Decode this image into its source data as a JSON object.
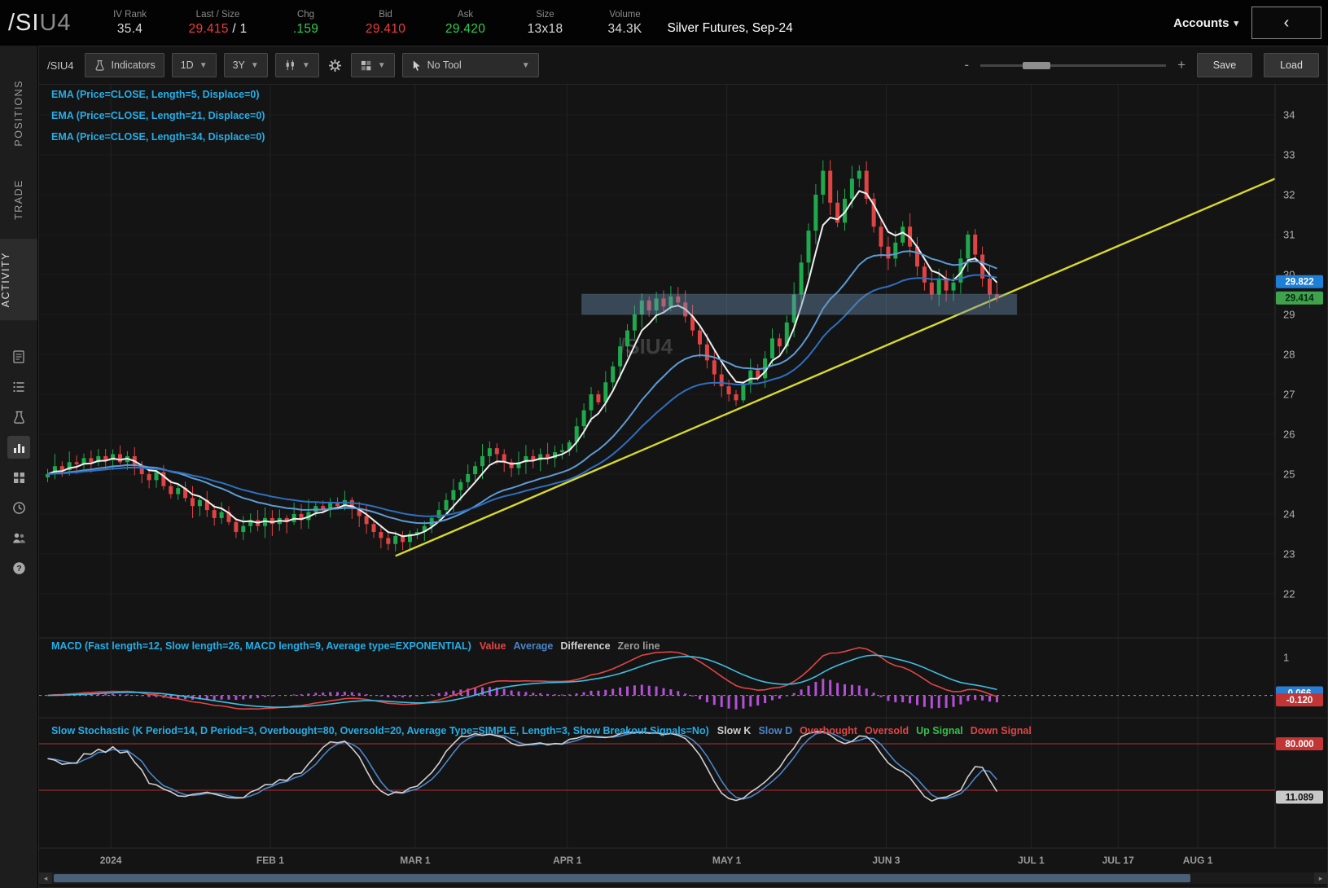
{
  "header": {
    "symbol_root": "/SI",
    "symbol_suffix": "U4",
    "fields": [
      {
        "key": "iv-rank",
        "label": "IV Rank",
        "value": "35.4",
        "color": "#d8d8d8"
      },
      {
        "key": "last-size",
        "label": "Last / Size",
        "value": "29.415",
        "suffix": " / 1",
        "color": "#f23b3b"
      },
      {
        "key": "chg",
        "label": "Chg",
        "value": ".159",
        "color": "#2fce4a"
      },
      {
        "key": "bid",
        "label": "Bid",
        "value": "29.410",
        "color": "#f23b3b"
      },
      {
        "key": "ask",
        "label": "Ask",
        "value": "29.420",
        "color": "#2fce4a"
      },
      {
        "key": "size",
        "label": "Size",
        "value": "13x18",
        "color": "#d8d8d8"
      },
      {
        "key": "volume",
        "label": "Volume",
        "value": "34.3K",
        "color": "#d8d8d8"
      }
    ],
    "description": "Silver Futures, Sep-24",
    "accounts_label": "Accounts"
  },
  "sidebar": {
    "tabs": [
      {
        "label": "POSITIONS",
        "active": false
      },
      {
        "label": "TRADE",
        "active": false
      },
      {
        "label": "ACTIVITY",
        "active": true
      }
    ],
    "icons": [
      "monitor-icon",
      "watchlist-icon",
      "beaker-icon",
      "chart-icon",
      "apps-grid-icon",
      "clock-icon",
      "people-icon",
      "help-icon"
    ],
    "active_icon": "chart-icon"
  },
  "toolbar": {
    "symbol": "/SIU4",
    "indicators_label": "Indicators",
    "timeframe": "1D",
    "range": "3Y",
    "tool_label": "No Tool",
    "zoom_out": "-",
    "zoom_in": "+",
    "save_label": "Save",
    "load_label": "Load"
  },
  "studies": {
    "ema_labels": [
      "EMA (Price=CLOSE, Length=5, Displace=0)",
      "EMA (Price=CLOSE, Length=21, Displace=0)",
      "EMA (Price=CLOSE, Length=34, Displace=0)"
    ],
    "macd_title": "MACD (Fast length=12, Slow length=26, MACD length=9, Average type=EXPONENTIAL)",
    "macd_legend": [
      {
        "text": "Value",
        "color": "#e04545"
      },
      {
        "text": "Average",
        "color": "#4a85c8"
      },
      {
        "text": "Difference",
        "color": "#d0d0d0"
      },
      {
        "text": "Zero line",
        "color": "#9a9a9a"
      }
    ],
    "stoch_title": "Slow Stochastic (K Period=14, D Period=3, Overbought=80, Oversold=20, Average Type=SIMPLE, Length=3, Show Breakout Signals=No)",
    "stoch_legend": [
      {
        "text": "Slow K",
        "color": "#d0d0d0"
      },
      {
        "text": "Slow D",
        "color": "#4a85c8"
      },
      {
        "text": "Overbought",
        "color": "#e04545"
      },
      {
        "text": "Oversold",
        "color": "#e04545"
      },
      {
        "text": "Up Signal",
        "color": "#35c04a"
      },
      {
        "text": "Down Signal",
        "color": "#e04545"
      }
    ]
  },
  "colors": {
    "up": "#1fa94d",
    "down": "#e04343",
    "ema5": "#f0f0f0",
    "ema21": "#5b9bd5",
    "ema34": "#2e6fc0",
    "trendline": "#d9d92a",
    "zone_fill": "#6e91b4",
    "zone_stroke": "#a0bed7",
    "macd_value": "#e04545",
    "macd_avg": "#3fbde0",
    "macd_hist": "#b44fd8",
    "stoch_k": "#d0d0d0",
    "stoch_d": "#4a85c8",
    "ob_os_line": "#b03030",
    "study_label": "#25aee8",
    "grid": "#232323",
    "axis_text": "#b0b0b0"
  },
  "chart_data": {
    "type": "candlestick+indicators",
    "symbol": "/SIU4",
    "title": "Silver Futures Sep-24 daily chart with EMA 5/21/34, MACD and Slow Stochastic",
    "closes": [
      25.0,
      25.2,
      25.1,
      25.3,
      25.25,
      25.4,
      25.3,
      25.45,
      25.35,
      25.5,
      25.3,
      25.45,
      25.2,
      25.0,
      24.85,
      25.05,
      24.7,
      24.5,
      24.65,
      24.4,
      24.2,
      24.35,
      24.1,
      23.9,
      24.05,
      23.8,
      23.55,
      23.7,
      23.85,
      23.7,
      23.9,
      23.75,
      23.9,
      23.8,
      24.0,
      23.85,
      24.05,
      24.2,
      24.1,
      24.3,
      24.2,
      24.35,
      24.15,
      23.95,
      23.75,
      23.55,
      23.4,
      23.25,
      23.45,
      23.3,
      23.5,
      23.55,
      23.7,
      23.9,
      24.1,
      24.35,
      24.6,
      24.8,
      25.0,
      25.2,
      25.45,
      25.65,
      25.5,
      25.3,
      25.15,
      25.3,
      25.45,
      25.35,
      25.5,
      25.4,
      25.55,
      25.6,
      25.8,
      26.2,
      26.6,
      27.0,
      26.8,
      27.3,
      27.7,
      28.2,
      28.6,
      29.0,
      29.35,
      29.1,
      29.4,
      29.2,
      29.45,
      29.3,
      28.95,
      28.6,
      28.25,
      27.85,
      27.5,
      27.2,
      27.0,
      26.85,
      27.25,
      27.6,
      27.4,
      27.9,
      28.4,
      28.2,
      28.8,
      29.5,
      30.3,
      31.1,
      32.0,
      32.6,
      31.8,
      31.3,
      31.9,
      32.4,
      32.6,
      31.9,
      31.2,
      30.7,
      30.4,
      30.8,
      31.2,
      30.7,
      30.2,
      29.8,
      29.5,
      29.9,
      29.6,
      29.8,
      30.4,
      31.0,
      30.5,
      29.9,
      29.5,
      29.414
    ],
    "x_axis_ticks": [
      {
        "label": "2024",
        "index": 9
      },
      {
        "label": "FEB 1",
        "index": 31
      },
      {
        "label": "MAR 1",
        "index": 51
      },
      {
        "label": "APR 1",
        "index": 72
      },
      {
        "label": "MAY 1",
        "index": 94
      },
      {
        "label": "JUN 3",
        "index": 116
      },
      {
        "label": "JUL 1",
        "index": 136
      },
      {
        "label": "JUL 17",
        "index": 148
      },
      {
        "label": "AUG 1",
        "index": 159
      }
    ],
    "y_axis_ticks": [
      34,
      33,
      32,
      31,
      30,
      29,
      28,
      27,
      26,
      25,
      24,
      23,
      22
    ],
    "ylim": [
      21.6,
      34.75
    ],
    "ema_lengths": [
      5,
      21,
      34
    ],
    "trendline": {
      "start": {
        "index": 48,
        "price": 22.95
      },
      "end": {
        "index": 170,
        "price": 32.45
      }
    },
    "zone": {
      "start_index": 74,
      "end_index": 134,
      "price_low": 29.0,
      "price_high": 29.51
    },
    "price_bubbles": [
      {
        "text": "29.822",
        "price": 29.822,
        "bg": "#1e7fd6",
        "fg": "#ffffff"
      },
      {
        "text": "29.414",
        "price": 29.414,
        "bg": "#3fa34d",
        "fg": "#06290e"
      }
    ],
    "macd": {
      "fast": 12,
      "slow": 26,
      "signal": 9,
      "axis_tick": "1",
      "badges": [
        {
          "text": "0.066",
          "value": 0.066,
          "bg": "#2a7fd4",
          "fg": "#ffffff"
        },
        {
          "text": "-0.120",
          "value": -0.12,
          "bg": "#c23535",
          "fg": "#ffffff"
        }
      ]
    },
    "stochastic": {
      "k_period": 14,
      "smooth": 3,
      "overbought": 80,
      "oversold": 20,
      "badges": [
        {
          "text": "80.000",
          "value": 80,
          "bg": "#c23535",
          "fg": "#ffffff"
        },
        {
          "text": "11.089",
          "value": 11.089,
          "bg": "#c8c8c8",
          "fg": "#111111"
        }
      ]
    }
  }
}
